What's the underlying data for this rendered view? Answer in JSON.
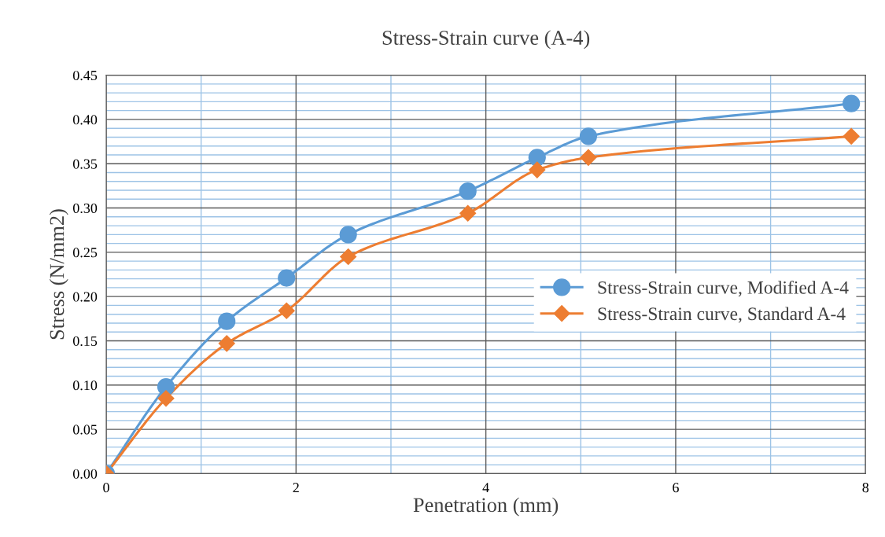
{
  "chart_data": {
    "type": "line",
    "title": "Stress-Strain curve (A-4)",
    "xlabel": "Penetration (mm)",
    "ylabel": "Stress (N/mm2)",
    "xlim": [
      0,
      8
    ],
    "xticks": [
      0,
      {
        "value": 1,
        "label": null
      },
      2,
      {
        "value": 3,
        "label": null
      },
      4,
      {
        "value": 5,
        "label": null
      },
      6,
      {
        "value": 7,
        "label": null
      },
      8
    ],
    "ylim": [
      0,
      0.45
    ],
    "yticks": [
      {
        "value": 0,
        "label": "0.00"
      },
      {
        "value": 0.01,
        "label": null
      },
      {
        "value": 0.02,
        "label": null
      },
      {
        "value": 0.03,
        "label": null
      },
      {
        "value": 0.04,
        "label": null
      },
      {
        "value": 0.05,
        "label": "0.05"
      },
      {
        "value": 0.06,
        "label": null
      },
      {
        "value": 0.07,
        "label": null
      },
      {
        "value": 0.08,
        "label": null
      },
      {
        "value": 0.09,
        "label": null
      },
      {
        "value": 0.1,
        "label": "0.10"
      },
      {
        "value": 0.11,
        "label": null
      },
      {
        "value": 0.12,
        "label": null
      },
      {
        "value": 0.13,
        "label": null
      },
      {
        "value": 0.14,
        "label": null
      },
      {
        "value": 0.15,
        "label": "0.15"
      },
      {
        "value": 0.16,
        "label": null
      },
      {
        "value": 0.17,
        "label": null
      },
      {
        "value": 0.18,
        "label": null
      },
      {
        "value": 0.19,
        "label": null
      },
      {
        "value": 0.2,
        "label": "0.20"
      },
      {
        "value": 0.21,
        "label": null
      },
      {
        "value": 0.22,
        "label": null
      },
      {
        "value": 0.23,
        "label": null
      },
      {
        "value": 0.24,
        "label": null
      },
      {
        "value": 0.25,
        "label": "0.25"
      },
      {
        "value": 0.26,
        "label": null
      },
      {
        "value": 0.27,
        "label": null
      },
      {
        "value": 0.28,
        "label": null
      },
      {
        "value": 0.29,
        "label": null
      },
      {
        "value": 0.3,
        "label": "0.30"
      },
      {
        "value": 0.31,
        "label": null
      },
      {
        "value": 0.32,
        "label": null
      },
      {
        "value": 0.33,
        "label": null
      },
      {
        "value": 0.34,
        "label": null
      },
      {
        "value": 0.35,
        "label": "0.35"
      },
      {
        "value": 0.36,
        "label": null
      },
      {
        "value": 0.37,
        "label": null
      },
      {
        "value": 0.38,
        "label": null
      },
      {
        "value": 0.39,
        "label": null
      },
      {
        "value": 0.4,
        "label": "0.40"
      },
      {
        "value": 0.41,
        "label": null
      },
      {
        "value": 0.42,
        "label": null
      },
      {
        "value": 0.43,
        "label": null
      },
      {
        "value": 0.44,
        "label": null
      },
      {
        "value": 0.45,
        "label": "0.45"
      }
    ],
    "grid": true,
    "legend": "right",
    "line_style": "solid",
    "x": [
      0,
      0.63,
      1.27,
      1.9,
      2.55,
      3.81,
      4.54,
      5.08,
      7.85
    ],
    "series": [
      {
        "name": "Stress-Strain curve, Modified A-4",
        "color": "#5b9bd5",
        "marker": "circle",
        "values": [
          0,
          0.098,
          0.172,
          0.221,
          0.27,
          0.319,
          0.357,
          0.381,
          0.418
        ]
      },
      {
        "name": "Stress-Strain curve, Standard A-4",
        "color": "#ed7d31",
        "marker": "diamond",
        "values": [
          0,
          0.085,
          0.147,
          0.184,
          0.245,
          0.294,
          0.343,
          0.357,
          0.381
        ]
      }
    ]
  }
}
